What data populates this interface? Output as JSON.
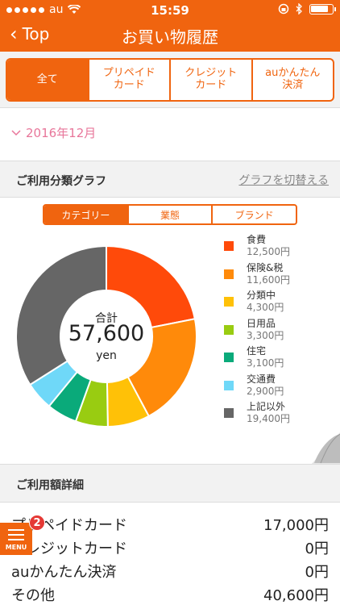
{
  "status_bar": {
    "carrier": "au",
    "time": "15:59"
  },
  "nav": {
    "back_label": "Top",
    "title": "お買い物履歴"
  },
  "tabs": [
    {
      "label": "全て",
      "active": true
    },
    {
      "label": "プリペイド\nカード",
      "active": false
    },
    {
      "label": "クレジット\nカード",
      "active": false
    },
    {
      "label": "auかんたん\n決済",
      "active": false
    }
  ],
  "month_selector": "2016年12月",
  "category_section": {
    "title": "ご利用分類グラフ",
    "toggle_link": "グラフを切替える"
  },
  "segments": [
    {
      "label": "カテゴリー",
      "active": true
    },
    {
      "label": "業態",
      "active": false
    },
    {
      "label": "ブランド",
      "active": false
    }
  ],
  "chart_data": {
    "type": "pie",
    "center": {
      "title": "合計",
      "value": "57,600",
      "unit": "yen"
    },
    "slices": [
      {
        "name": "食費",
        "value": 12500,
        "label": "12,500円",
        "color": "#ff4a0a"
      },
      {
        "name": "保険&税",
        "value": 11600,
        "label": "11,600円",
        "color": "#ff8a0a"
      },
      {
        "name": "分類中",
        "value": 4300,
        "label": "4,300円",
        "color": "#ffc107"
      },
      {
        "name": "日用品",
        "value": 3300,
        "label": "3,300円",
        "color": "#99cc11"
      },
      {
        "name": "住宅",
        "value": 3100,
        "label": "3,100円",
        "color": "#0aaa7a"
      },
      {
        "name": "交通費",
        "value": 2900,
        "label": "2,900円",
        "color": "#6fd8f8"
      },
      {
        "name": "上記以外",
        "value": 19400,
        "label": "19,400円",
        "color": "#666666"
      }
    ]
  },
  "detail_section": {
    "title": "ご利用額詳細",
    "rows": [
      {
        "label": "プリペイドカード",
        "amount": "17,000円"
      },
      {
        "label": "クレジットカード",
        "amount": "0円"
      },
      {
        "label": "auかんたん決済",
        "amount": "0円"
      },
      {
        "label": "その他",
        "amount": "40,600円"
      }
    ]
  },
  "menu": {
    "label": "MENU",
    "badge": "2"
  },
  "colors": {
    "accent": "#f0640f",
    "month": "#e8769a"
  }
}
